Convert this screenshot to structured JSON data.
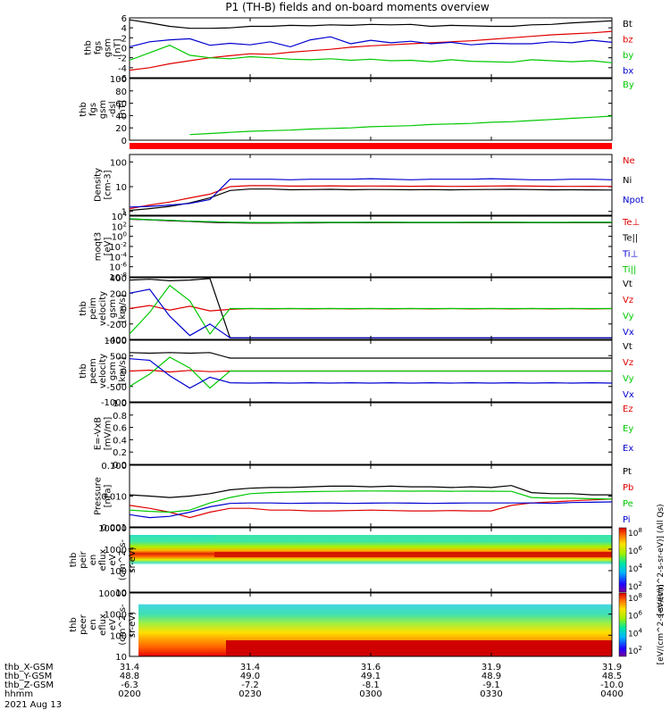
{
  "title": "P1 (TH-B) fields and on-board moments overview",
  "date_label": "2021 Aug 13",
  "colors": {
    "black": "#000000",
    "red": "#e00000",
    "green": "#00c800",
    "blue": "#0000d0",
    "frame": "#000000"
  },
  "chart_data": [
    {
      "type": "line",
      "id": "fgs",
      "ylabel": [
        "thb",
        "fgs",
        "gsm",
        "[nT]"
      ],
      "ylim": [
        -6,
        6
      ],
      "yticks": [
        "6",
        "4",
        "2",
        "0",
        "-2",
        "-4",
        "-6"
      ],
      "series": [
        {
          "name": "Bt",
          "color": "black",
          "values": [
            5.6,
            5.0,
            4.3,
            3.9,
            3.9,
            4.0,
            4.3,
            4.3,
            4.5,
            4.4,
            4.6,
            4.5,
            4.7,
            4.6,
            4.7,
            4.3,
            4.5,
            4.4,
            4.3,
            4.3,
            4.6,
            4.7,
            5.0,
            5.2,
            5.4
          ]
        },
        {
          "name": "bz",
          "color": "red",
          "values": [
            -4.5,
            -4.0,
            -3.2,
            -2.6,
            -2.0,
            -1.6,
            -1.2,
            -1.3,
            -0.9,
            -0.6,
            -0.3,
            0.1,
            0.4,
            0.6,
            0.8,
            1.0,
            1.2,
            1.4,
            1.7,
            2.0,
            2.3,
            2.6,
            2.8,
            3.0,
            3.3
          ]
        },
        {
          "name": "by",
          "color": "green",
          "values": [
            -2.5,
            -1.0,
            0.5,
            -1.5,
            -2.0,
            -2.2,
            -1.8,
            -2.0,
            -2.3,
            -2.4,
            -2.2,
            -2.5,
            -2.3,
            -2.6,
            -2.5,
            -2.8,
            -2.4,
            -2.7,
            -2.8,
            -2.9,
            -2.4,
            -2.6,
            -2.8,
            -2.6,
            -3.0
          ]
        },
        {
          "name": "bx",
          "color": "blue",
          "values": [
            0.2,
            1.2,
            1.6,
            1.8,
            0.5,
            0.9,
            0.6,
            1.2,
            0.2,
            1.6,
            2.2,
            0.8,
            1.5,
            1.0,
            1.3,
            0.8,
            1.1,
            0.6,
            0.9,
            0.8,
            0.8,
            1.2,
            1.0,
            1.5,
            1.1
          ]
        }
      ]
    },
    {
      "type": "line",
      "id": "fgs_dsl",
      "ylabel": [
        "thb",
        "fgs",
        "gsm",
        "-dsl",
        "[nT]"
      ],
      "ylim": [
        -10,
        100
      ],
      "yticks": [
        "100",
        "80",
        "60",
        "40",
        "20",
        "0"
      ],
      "series": [
        {
          "name": "By",
          "color": "green",
          "values": [
            null,
            null,
            null,
            0,
            2,
            4,
            6,
            7,
            8,
            10,
            11,
            12,
            14,
            15,
            16,
            18,
            19,
            20,
            22,
            23,
            25,
            27,
            29,
            31,
            33
          ]
        }
      ]
    },
    {
      "type": "line",
      "id": "density",
      "log": true,
      "ylabel": [
        "Density",
        "[cm-3]"
      ],
      "ylim": [
        0.7,
        200
      ],
      "yticks": [
        "100",
        "10",
        "1"
      ],
      "series": [
        {
          "name": "Ne",
          "color": "red",
          "values": [
            1.3,
            1.8,
            2.4,
            3.5,
            5,
            10,
            11,
            11,
            10.5,
            10.5,
            10.8,
            10.5,
            10.6,
            10.5,
            10.4,
            10.5,
            10.3,
            10.4,
            10.6,
            10.8,
            10.5,
            10.4,
            10.3,
            10.4,
            10.3
          ]
        },
        {
          "name": "Ni",
          "color": "black",
          "values": [
            1.1,
            1.3,
            1.6,
            2.2,
            3.5,
            7,
            8,
            8,
            7.5,
            7.6,
            7.8,
            7.5,
            7.7,
            7.6,
            7.5,
            7.6,
            7.4,
            7.6,
            7.7,
            7.8,
            7.6,
            7.4,
            7.5,
            7.4,
            7.3
          ]
        },
        {
          "name": "Npot",
          "color": "blue",
          "values": [
            1.5,
            1.6,
            1.8,
            2.1,
            3,
            20,
            20,
            20,
            19,
            20,
            20,
            20,
            21,
            20,
            19,
            20,
            20,
            20,
            21,
            20,
            19,
            19,
            20,
            20,
            19
          ]
        }
      ]
    },
    {
      "type": "line",
      "id": "temperature",
      "log": true,
      "ylabel": [
        "moqt3",
        "[eV]"
      ],
      "ylim": [
        1e-08,
        10000
      ],
      "yticks": [
        "10^4",
        "10^2",
        "10^0",
        "10^-2",
        "10^-4",
        "10^-6",
        "10^-8"
      ],
      "series": [
        {
          "name": "Te⊥",
          "color": "red",
          "values": [
            2500,
            1800,
            1200,
            900,
            600,
            500,
            450,
            460,
            470,
            480,
            490,
            500,
            500,
            510,
            500,
            490,
            500,
            510,
            520,
            510,
            500,
            500,
            505,
            510,
            505
          ]
        },
        {
          "name": "Te||",
          "color": "black",
          "values": [
            2500,
            1800,
            1200,
            900,
            600,
            500,
            450,
            460,
            470,
            480,
            490,
            500,
            500,
            510,
            500,
            490,
            500,
            510,
            520,
            510,
            500,
            500,
            505,
            510,
            505
          ]
        },
        {
          "name": "Ti⊥",
          "color": "blue",
          "values": [
            3000,
            2000,
            1500,
            1000,
            800,
            600,
            550,
            560,
            570,
            580,
            580,
            590,
            600,
            600,
            590,
            580,
            590,
            600,
            610,
            600,
            590,
            590,
            595,
            600,
            595
          ]
        },
        {
          "name": "Ti||",
          "color": "green",
          "values": [
            3000,
            2000,
            1500,
            1000,
            800,
            600,
            550,
            560,
            570,
            580,
            580,
            590,
            600,
            600,
            590,
            580,
            590,
            600,
            610,
            600,
            590,
            590,
            595,
            600,
            595
          ]
        }
      ]
    },
    {
      "type": "line",
      "id": "peim_velocity",
      "ylabel": [
        "thb",
        "peim",
        "velocity",
        "gsm",
        "[km/s]"
      ],
      "ylim": [
        -400,
        400
      ],
      "yticks": [
        "400",
        "200",
        "0",
        "-200",
        "-400"
      ],
      "series": [
        {
          "name": "Vt",
          "color": "black",
          "values": [
            370,
            380,
            360,
            370,
            390,
            -380,
            -380,
            -380,
            -380,
            -380,
            -380,
            -380,
            -380,
            -380,
            -380,
            -380,
            -380,
            -380,
            -380,
            -380,
            -380,
            -380,
            -380,
            -380,
            -380
          ]
        },
        {
          "name": "Vz",
          "color": "red",
          "values": [
            0,
            40,
            -20,
            30,
            -30,
            -10,
            0,
            -5,
            0,
            -5,
            0,
            -5,
            0,
            -5,
            0,
            -5,
            0,
            -5,
            0,
            -5,
            0,
            -5,
            0,
            -5,
            0
          ]
        },
        {
          "name": "Vy",
          "color": "green",
          "values": [
            -330,
            -50,
            300,
            100,
            -330,
            0,
            0,
            0,
            0,
            0,
            0,
            0,
            0,
            0,
            0,
            0,
            0,
            0,
            0,
            0,
            0,
            0,
            0,
            0,
            0
          ]
        },
        {
          "name": "Vx",
          "color": "blue",
          "values": [
            200,
            250,
            -100,
            -350,
            -200,
            -380,
            -380,
            -380,
            -380,
            -380,
            -380,
            -380,
            -380,
            -380,
            -380,
            -380,
            -380,
            -380,
            -380,
            -380,
            -380,
            -380,
            -380,
            -380,
            -380
          ]
        }
      ]
    },
    {
      "type": "line",
      "id": "peem_velocity",
      "ylabel": [
        "thb",
        "peem",
        "velocity",
        "gsm",
        "[km/s]"
      ],
      "ylim": [
        -1000,
        1000
      ],
      "yticks": [
        "1000",
        "500",
        "0",
        "-500",
        "-1000"
      ],
      "series": [
        {
          "name": "Vt",
          "color": "black",
          "values": [
            600,
            580,
            600,
            580,
            600,
            420,
            420,
            420,
            420,
            420,
            420,
            420,
            420,
            420,
            420,
            420,
            420,
            420,
            420,
            420,
            420,
            420,
            420,
            420,
            420
          ]
        },
        {
          "name": "Vz",
          "color": "red",
          "values": [
            0,
            30,
            -30,
            20,
            -20,
            0,
            0,
            0,
            0,
            0,
            0,
            0,
            0,
            0,
            0,
            0,
            0,
            0,
            0,
            0,
            0,
            0,
            0,
            0,
            0
          ]
        },
        {
          "name": "Vy",
          "color": "green",
          "values": [
            -500,
            -100,
            450,
            100,
            -550,
            0,
            0,
            0,
            0,
            0,
            0,
            0,
            0,
            0,
            0,
            0,
            0,
            0,
            0,
            0,
            0,
            0,
            0,
            0,
            0
          ]
        },
        {
          "name": "Vx",
          "color": "blue",
          "values": [
            400,
            350,
            -150,
            -550,
            -200,
            -380,
            -390,
            -380,
            -390,
            -380,
            -390,
            -380,
            -390,
            -380,
            -390,
            -380,
            -390,
            -380,
            -390,
            -380,
            -390,
            -380,
            -390,
            -380,
            -390
          ]
        }
      ]
    },
    {
      "type": "line",
      "id": "efield",
      "ylabel": [
        "E=-VxB",
        "[mV/m]"
      ],
      "ylim": [
        0,
        1
      ],
      "yticks": [
        "1.0",
        "0.8",
        "0.6",
        "0.4",
        "0.2",
        "0.0"
      ],
      "series": [
        {
          "name": "Ez",
          "color": "red",
          "values": []
        },
        {
          "name": "Ey",
          "color": "green",
          "values": []
        },
        {
          "name": "Ex",
          "color": "blue",
          "values": []
        }
      ]
    },
    {
      "type": "line",
      "id": "pressure",
      "log": true,
      "ylabel": [
        "Pressure",
        "[nPa]"
      ],
      "ylim": [
        0.001,
        0.1
      ],
      "yticks": [
        "0.100",
        "0.010",
        "0.001"
      ],
      "series": [
        {
          "name": "Pt",
          "color": "black",
          "values": [
            0.011,
            0.01,
            0.009,
            0.01,
            0.012,
            0.016,
            0.018,
            0.019,
            0.019,
            0.02,
            0.021,
            0.021,
            0.02,
            0.021,
            0.02,
            0.02,
            0.019,
            0.02,
            0.019,
            0.022,
            0.013,
            0.012,
            0.012,
            0.011,
            0.011
          ]
        },
        {
          "name": "Pb",
          "color": "red",
          "values": [
            0.005,
            0.004,
            0.003,
            0.002,
            0.003,
            0.004,
            0.004,
            0.0035,
            0.0035,
            0.0033,
            0.0033,
            0.0034,
            0.0035,
            0.0034,
            0.0033,
            0.0033,
            0.0034,
            0.0033,
            0.0033,
            0.005,
            0.006,
            0.0065,
            0.007,
            0.0075,
            0.008
          ]
        },
        {
          "name": "Pe",
          "color": "green",
          "values": [
            0.0035,
            0.0032,
            0.003,
            0.0035,
            0.006,
            0.009,
            0.012,
            0.013,
            0.0135,
            0.014,
            0.0142,
            0.0145,
            0.0146,
            0.0145,
            0.0144,
            0.0145,
            0.0143,
            0.0144,
            0.0143,
            0.0142,
            0.009,
            0.0085,
            0.0085,
            0.0082,
            0.008
          ]
        },
        {
          "name": "Pi",
          "color": "blue",
          "values": [
            0.0025,
            0.002,
            0.0022,
            0.003,
            0.0045,
            0.0058,
            0.006,
            0.006,
            0.0058,
            0.0059,
            0.006,
            0.0058,
            0.0059,
            0.006,
            0.0059,
            0.0058,
            0.0059,
            0.006,
            0.006,
            0.006,
            0.006,
            0.0058,
            0.0062,
            0.0063,
            0.0065
          ]
        }
      ]
    },
    {
      "type": "heatmap",
      "id": "peir",
      "ylabel": [
        "thb",
        "peir",
        "en",
        "eflux",
        "eV",
        "(cm^2-s-",
        "sr-eV)"
      ],
      "ylim": [
        5,
        20000
      ],
      "yticks": [
        "10000",
        "1000",
        "100",
        "10"
      ],
      "colorbar_label": "[eV/(cm^2-s-sr-eV)] (All Qs)",
      "colorbar_ticks": [
        "10^8",
        "10^6",
        "10^4",
        "10^2"
      ]
    },
    {
      "type": "heatmap",
      "id": "peer",
      "ylabel": [
        "thb",
        "peer",
        "en",
        "eflux",
        "eV",
        "(cm^2-s-",
        "sr-eV)"
      ],
      "ylim": [
        5,
        20000
      ],
      "yticks": [
        "10000",
        "1000",
        "100",
        "10"
      ],
      "colorbar_label": "[eV/(cm^2-s-sr-eV)]",
      "colorbar_ticks": [
        "10^8",
        "10^6",
        "10^4",
        "10^2"
      ]
    }
  ],
  "xaxis": {
    "row_labels": [
      "thb_X-GSM",
      "thb_Y-GSM",
      "thb_Z-GSM",
      "hhmm"
    ],
    "ticks": [
      {
        "x": "31.4",
        "y": "48.8",
        "z": "-6.3",
        "hhmm": "0200"
      },
      {
        "x": "31.4",
        "y": "49.0",
        "z": "-7.2",
        "hhmm": "0230"
      },
      {
        "x": "31.6",
        "y": "49.1",
        "z": "-8.1",
        "hhmm": "0300"
      },
      {
        "x": "31.9",
        "y": "48.9",
        "z": "-9.1",
        "hhmm": "0330"
      },
      {
        "x": "31.9",
        "y": "48.5",
        "z": "-10.0",
        "hhmm": "0400"
      }
    ]
  }
}
